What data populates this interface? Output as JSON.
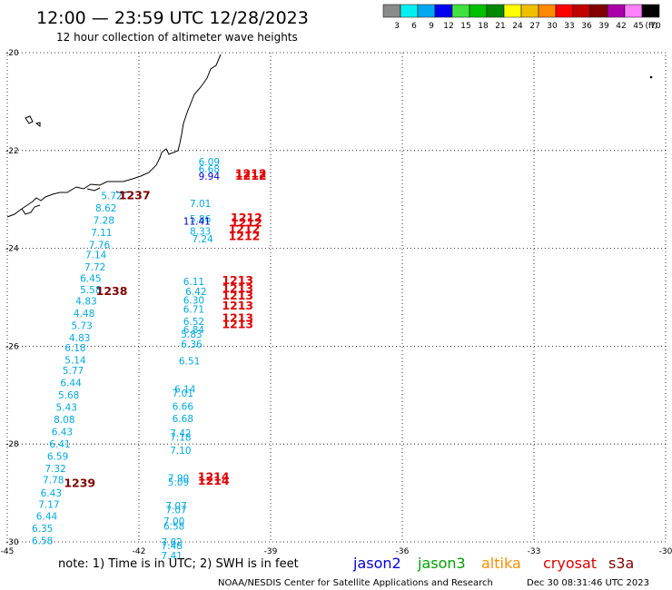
{
  "title": "12:00 — 23:59 UTC 12/28/2023",
  "subtitle": "12 hour collection of altimeter wave heights",
  "colorbar": {
    "colors": [
      "#8a8a8a",
      "#00f0f0",
      "#00a8f0",
      "#0000f0",
      "#40e040",
      "#00c000",
      "#008800",
      "#ffff00",
      "#f0c000",
      "#ff8800",
      "#ff0000",
      "#c00000",
      "#800000",
      "#aa00aa",
      "#ff80ff",
      "#000000"
    ],
    "labels": [
      "3",
      "6",
      "9",
      "12",
      "15",
      "18",
      "21",
      "24",
      "27",
      "30",
      "33",
      "36",
      "39",
      "42",
      "45",
      "70"
    ],
    "unit": "(ft)"
  },
  "axes": {
    "lon_ticks": [
      "-45",
      "-42",
      "-39",
      "-36",
      "-33",
      "-30"
    ],
    "lat_ticks": [
      "-20",
      "-22",
      "-24",
      "-26",
      "-28",
      "-30"
    ]
  },
  "observations": {
    "jason3_track_1": [
      {
        "lat": -23.0,
        "lon": -42.62,
        "value": "5.72"
      },
      {
        "lat": -23.25,
        "lon": -42.75,
        "value": "8.62"
      },
      {
        "lat": -23.5,
        "lon": -42.8,
        "value": "7.28"
      },
      {
        "lat": -23.75,
        "lon": -42.85,
        "value": "7.11"
      },
      {
        "lat": -24.0,
        "lon": -42.9,
        "value": "7.76"
      },
      {
        "lat": -24.2,
        "lon": -42.98,
        "value": "7.14"
      },
      {
        "lat": -24.45,
        "lon": -43.0,
        "value": "7.72"
      },
      {
        "lat": -24.68,
        "lon": -43.1,
        "value": "6.45"
      },
      {
        "lat": -24.92,
        "lon": -43.1,
        "value": "5.58"
      },
      {
        "lat": -25.15,
        "lon": -43.2,
        "value": "4.83"
      },
      {
        "lat": -25.4,
        "lon": -43.25,
        "value": "4.48"
      },
      {
        "lat": -25.65,
        "lon": -43.3,
        "value": "5.73"
      },
      {
        "lat": -25.9,
        "lon": -43.35,
        "value": "4.83"
      },
      {
        "lat": -26.1,
        "lon": -43.45,
        "value": "6.18"
      },
      {
        "lat": -26.35,
        "lon": -43.45,
        "value": "5.14"
      },
      {
        "lat": -26.57,
        "lon": -43.5,
        "value": "5.77"
      },
      {
        "lat": -26.82,
        "lon": -43.55,
        "value": "6.44"
      },
      {
        "lat": -27.07,
        "lon": -43.6,
        "value": "5.68"
      },
      {
        "lat": -27.32,
        "lon": -43.65,
        "value": "5.43"
      },
      {
        "lat": -27.57,
        "lon": -43.7,
        "value": "8.08"
      },
      {
        "lat": -27.82,
        "lon": -43.75,
        "value": "6.43"
      },
      {
        "lat": -28.07,
        "lon": -43.8,
        "value": "6.41"
      },
      {
        "lat": -28.32,
        "lon": -43.85,
        "value": "6.59"
      },
      {
        "lat": -28.57,
        "lon": -43.9,
        "value": "7.32"
      },
      {
        "lat": -28.8,
        "lon": -43.95,
        "value": "7.78"
      },
      {
        "lat": -29.07,
        "lon": -44.0,
        "value": "6.43"
      },
      {
        "lat": -29.3,
        "lon": -44.05,
        "value": "7.17"
      },
      {
        "lat": -29.55,
        "lon": -44.1,
        "value": "6.44"
      },
      {
        "lat": -29.8,
        "lon": -44.2,
        "value": "6.35"
      },
      {
        "lat": -30.05,
        "lon": -44.2,
        "value": "6.58"
      }
    ],
    "jason3_track_2": [
      {
        "lat": -22.3,
        "lon": -40.4,
        "value": "6.09"
      },
      {
        "lat": -22.45,
        "lon": -40.4,
        "value": "6.68"
      },
      {
        "lat": -23.15,
        "lon": -40.6,
        "value": "7.01"
      },
      {
        "lat": -23.47,
        "lon": -40.6,
        "value": "5.86"
      },
      {
        "lat": -23.72,
        "lon": -40.6,
        "value": "8.33"
      },
      {
        "lat": -23.88,
        "lon": -40.55,
        "value": "7.24"
      },
      {
        "lat": -24.75,
        "lon": -40.75,
        "value": "6.11"
      },
      {
        "lat": -24.95,
        "lon": -40.7,
        "value": "6.42"
      },
      {
        "lat": -25.13,
        "lon": -40.75,
        "value": "6.30"
      },
      {
        "lat": -25.32,
        "lon": -40.75,
        "value": "6.71"
      },
      {
        "lat": -25.57,
        "lon": -40.75,
        "value": "6.52"
      },
      {
        "lat": -25.73,
        "lon": -40.75,
        "value": "6.84"
      },
      {
        "lat": -25.83,
        "lon": -40.8,
        "value": "5.83"
      },
      {
        "lat": -26.03,
        "lon": -40.8,
        "value": "6.36"
      },
      {
        "lat": -26.37,
        "lon": -40.85,
        "value": "6.51"
      },
      {
        "lat": -26.95,
        "lon": -40.95,
        "value": "6.14"
      },
      {
        "lat": -27.03,
        "lon": -41.0,
        "value": "7.01"
      },
      {
        "lat": -27.3,
        "lon": -41.0,
        "value": "6.66"
      },
      {
        "lat": -27.55,
        "lon": -41.0,
        "value": "6.68"
      },
      {
        "lat": -27.85,
        "lon": -41.05,
        "value": "7.42"
      },
      {
        "lat": -27.93,
        "lon": -41.05,
        "value": "7.18"
      },
      {
        "lat": -28.2,
        "lon": -41.05,
        "value": "7.10"
      },
      {
        "lat": -28.77,
        "lon": -41.1,
        "value": "7.90"
      },
      {
        "lat": -28.85,
        "lon": -41.1,
        "value": "5.09"
      },
      {
        "lat": -29.33,
        "lon": -41.15,
        "value": "7.07"
      },
      {
        "lat": -29.42,
        "lon": -41.15,
        "value": "7.07"
      },
      {
        "lat": -29.65,
        "lon": -41.2,
        "value": "7.00"
      },
      {
        "lat": -29.75,
        "lon": -41.2,
        "value": "6.58"
      },
      {
        "lat": -30.07,
        "lon": -41.25,
        "value": "7.82"
      },
      {
        "lat": -30.15,
        "lon": -41.25,
        "value": "7.48"
      },
      {
        "lat": -30.35,
        "lon": -41.25,
        "value": "7.41"
      }
    ],
    "jason2_track": [
      {
        "lat": -22.6,
        "lon": -40.4,
        "value": "9.94"
      },
      {
        "lat": -23.52,
        "lon": -40.68,
        "value": "11.41"
      }
    ],
    "time_labels": [
      {
        "lat": -23.0,
        "lon": -42.1,
        "value": "1237"
      },
      {
        "lat": -24.95,
        "lon": -42.62,
        "value": "1238"
      },
      {
        "lat": -28.88,
        "lon": -43.35,
        "value": "1239"
      },
      {
        "lat": -22.55,
        "lon": -39.45,
        "value": "1212"
      },
      {
        "lat": -22.6,
        "lon": -39.45,
        "value": "1212"
      },
      {
        "lat": -23.45,
        "lon": -39.55,
        "value": "1212"
      },
      {
        "lat": -23.55,
        "lon": -39.55,
        "value": "1212"
      },
      {
        "lat": -23.68,
        "lon": -39.6,
        "value": "1212"
      },
      {
        "lat": -23.83,
        "lon": -39.6,
        "value": "1212"
      },
      {
        "lat": -24.73,
        "lon": -39.75,
        "value": "1213"
      },
      {
        "lat": -24.9,
        "lon": -39.75,
        "value": "1213"
      },
      {
        "lat": -25.05,
        "lon": -39.75,
        "value": "1213"
      },
      {
        "lat": -25.25,
        "lon": -39.75,
        "value": "1213"
      },
      {
        "lat": -25.5,
        "lon": -39.75,
        "value": "1213"
      },
      {
        "lat": -25.63,
        "lon": -39.75,
        "value": "1213"
      },
      {
        "lat": -28.75,
        "lon": -40.3,
        "value": "1214"
      },
      {
        "lat": -28.83,
        "lon": -40.3,
        "value": "1214"
      }
    ]
  },
  "footer": {
    "note": "note:  1) Time is in UTC; 2) SWH is in feet",
    "satellites": [
      {
        "name": "jason2",
        "color": "#0000e0"
      },
      {
        "name": "jason3",
        "color": "#00a000"
      },
      {
        "name": "altika",
        "color": "#ff8c00"
      },
      {
        "name": "cryosat",
        "color": "#e00000"
      },
      {
        "name": "s3a",
        "color": "#800000"
      }
    ],
    "credit": "NOAA/NESDIS Center for Satellite Applications and Research",
    "timestamp": "Dec 30 08:31:46 UTC 2023"
  },
  "colors": {
    "jason3_value": "#00a8e0",
    "jason2_value": "#0000d0",
    "s3a_time": "#800000",
    "cryosat_time": "#e00000"
  }
}
